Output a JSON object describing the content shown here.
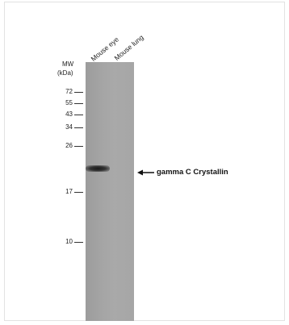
{
  "lanes": [
    "Mouse eye",
    "Mouse lung"
  ],
  "mw_title": [
    "MW",
    "(kDa)"
  ],
  "markers": [
    "72",
    "55",
    "43",
    "34",
    "26",
    "17",
    "10"
  ],
  "band_label": "gamma C Crystallin",
  "icons": {
    "arrow": "left-arrow-icon"
  }
}
